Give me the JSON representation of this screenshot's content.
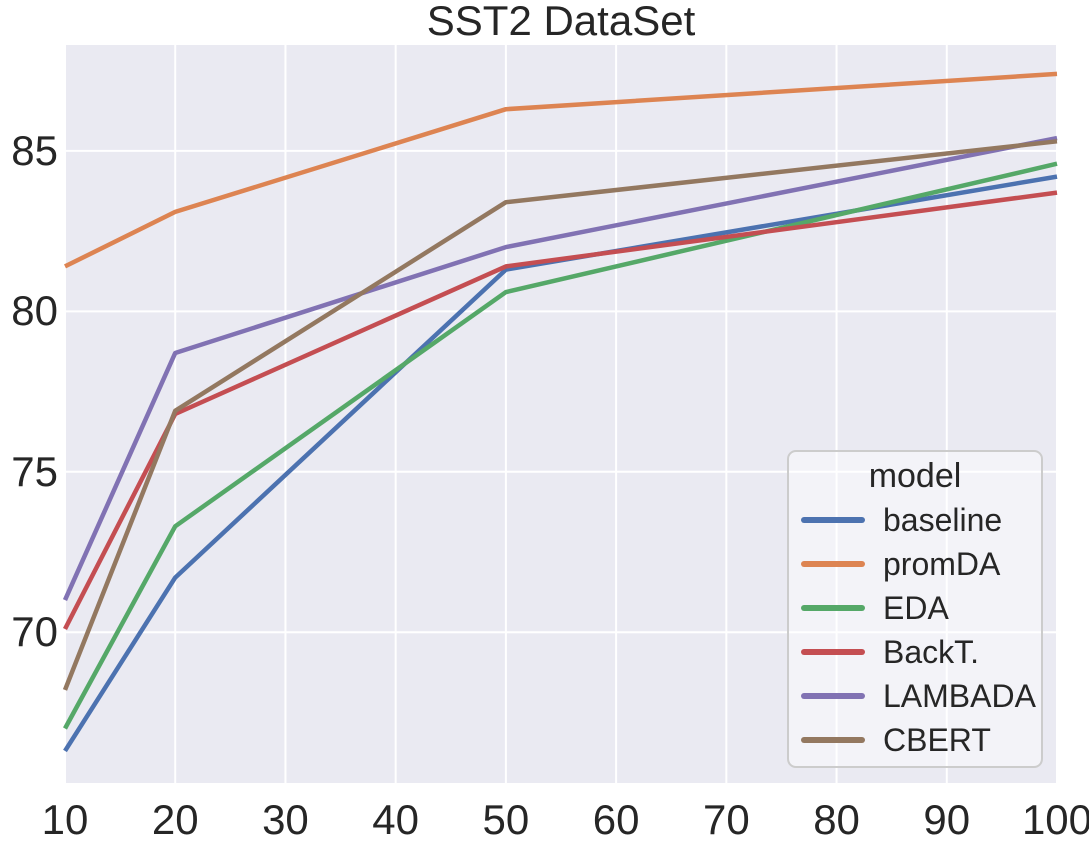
{
  "title": "SST2 DataSet",
  "chart_data": {
    "type": "line",
    "title": "SST2 DataSet",
    "xlabel": "",
    "ylabel": "",
    "x": [
      10,
      20,
      50,
      100
    ],
    "series": [
      {
        "name": "baseline",
        "color": "#4c72b0",
        "values": [
          66.3,
          71.7,
          81.3,
          84.2
        ]
      },
      {
        "name": "promDA",
        "color": "#dd8452",
        "values": [
          81.4,
          83.1,
          86.3,
          87.4
        ]
      },
      {
        "name": "EDA",
        "color": "#55a868",
        "values": [
          67.0,
          73.3,
          80.6,
          84.6
        ]
      },
      {
        "name": "BackT.",
        "color": "#c44e52",
        "values": [
          70.1,
          76.8,
          81.4,
          83.7
        ]
      },
      {
        "name": "LAMBADA",
        "color": "#8172b3",
        "values": [
          71.0,
          78.7,
          82.0,
          85.4
        ]
      },
      {
        "name": "CBERT",
        "color": "#937860",
        "values": [
          68.2,
          76.9,
          83.4,
          85.3
        ]
      }
    ],
    "xlim": [
      10,
      100
    ],
    "ylim": [
      65.3,
      88.3
    ],
    "x_ticks": [
      10,
      20,
      30,
      40,
      50,
      60,
      70,
      80,
      90,
      100
    ],
    "y_ticks": [
      70,
      75,
      80,
      85
    ],
    "grid": true,
    "plot_bg": "#eaeaf2",
    "grid_color": "#ffffff",
    "text_color": "#262626",
    "legend": {
      "title": "model",
      "position": "lower right"
    }
  }
}
